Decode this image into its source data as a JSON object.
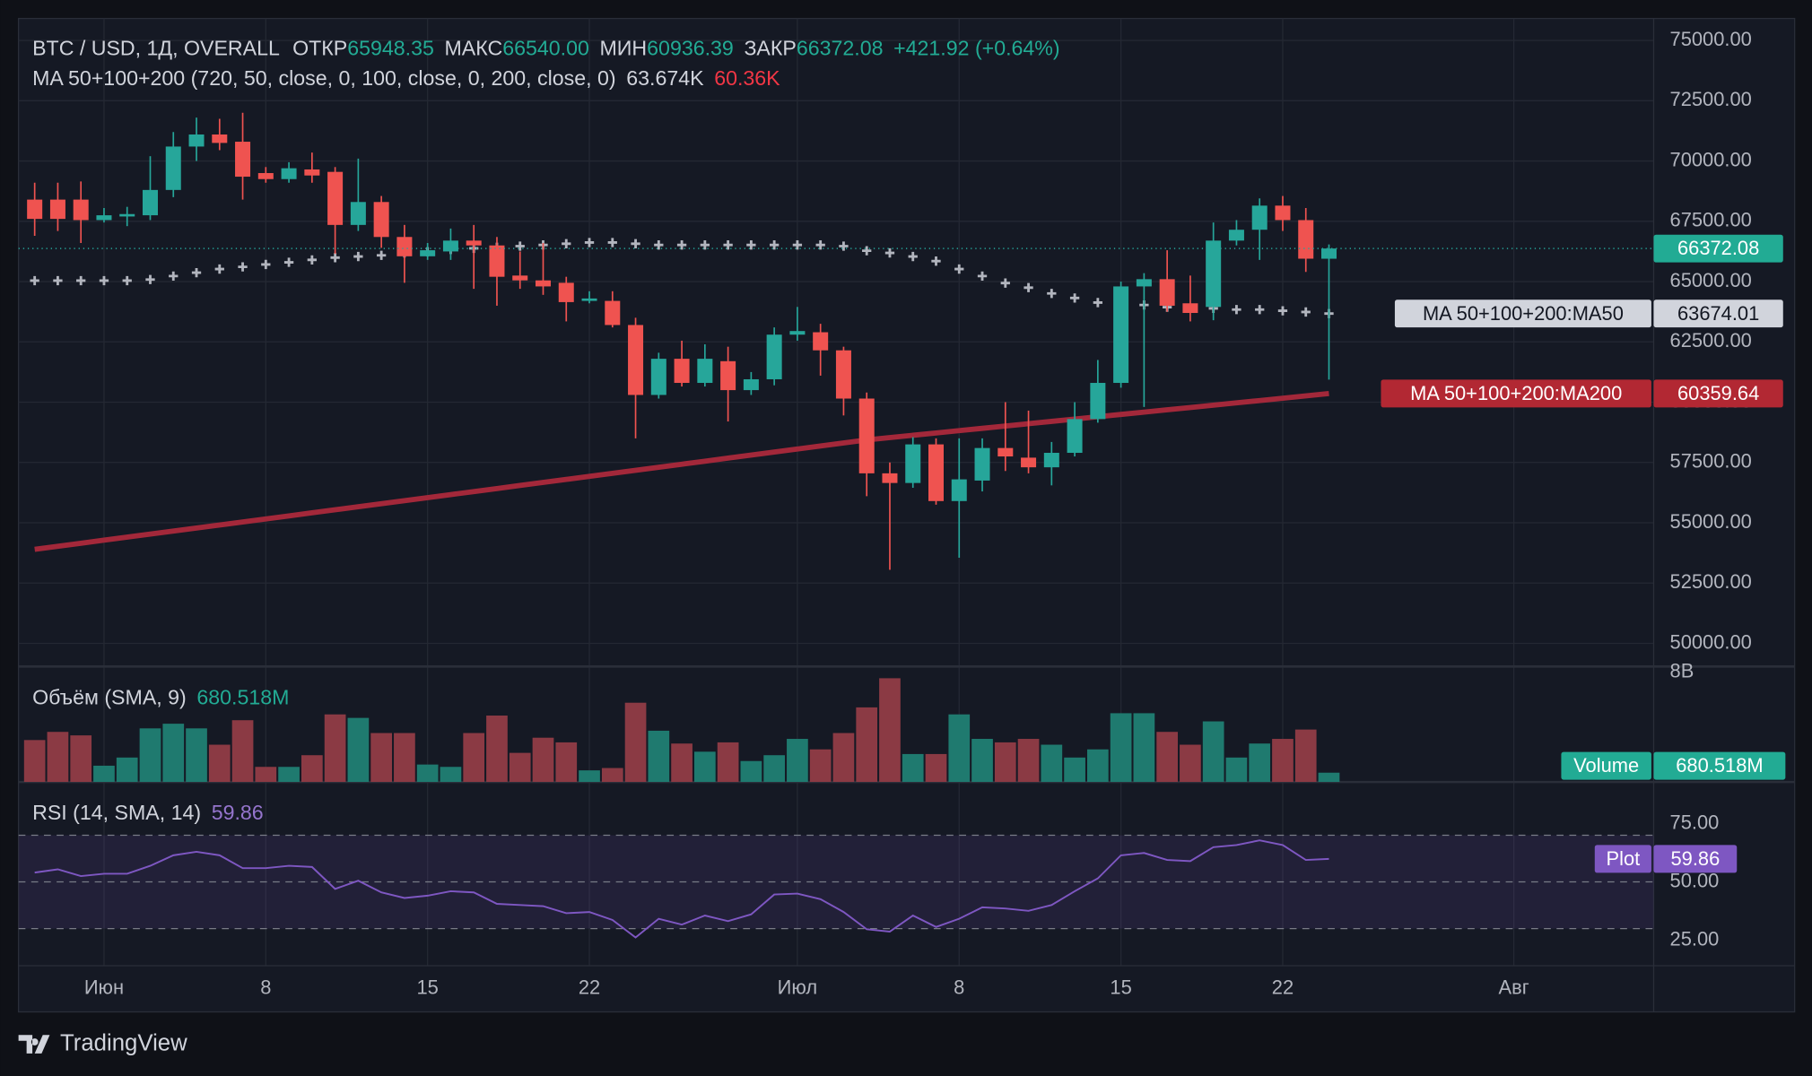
{
  "branding": "TradingView",
  "chart_data": [
    {
      "type": "candlestick",
      "title": "BTC / USD, 1Д, OVERALL",
      "ohlc_legend": [
        {
          "label": "ОТКР",
          "value": "65948.35"
        },
        {
          "label": "МАКС",
          "value": "66540.00"
        },
        {
          "label": "МИН",
          "value": "60936.39"
        },
        {
          "label": "ЗАКР",
          "value": "66372.08"
        }
      ],
      "change": "+421.92 (+0.64%)",
      "indicator": "MA 50+100+200 (720, 50, close, 0, 100, close, 0, 200, close, 0)",
      "indicator_values": [
        "63.674K",
        "60.36K"
      ],
      "x": [
        "05-29",
        "05-30",
        "05-31",
        "06-01",
        "06-02",
        "06-03",
        "06-04",
        "06-05",
        "06-06",
        "06-07",
        "06-08",
        "06-09",
        "06-10",
        "06-11",
        "06-12",
        "06-13",
        "06-14",
        "06-15",
        "06-16",
        "06-17",
        "06-18",
        "06-19",
        "06-20",
        "06-21",
        "06-22",
        "06-23",
        "06-24",
        "06-25",
        "06-26",
        "06-27",
        "06-28",
        "06-29",
        "06-30",
        "07-01",
        "07-02",
        "07-03",
        "07-04",
        "07-05",
        "07-06",
        "07-07",
        "07-08",
        "07-09",
        "07-10",
        "07-11",
        "07-12",
        "07-13",
        "07-14",
        "07-15",
        "07-16",
        "07-17",
        "07-18",
        "07-19",
        "07-20",
        "07-21",
        "07-22",
        "07-23",
        "07-24"
      ],
      "open": [
        68400,
        68400,
        68400,
        67550,
        67700,
        67750,
        68800,
        70600,
        71100,
        70800,
        69500,
        69250,
        69650,
        69550,
        67350,
        68300,
        66850,
        66050,
        66250,
        66700,
        66500,
        65250,
        65050,
        64950,
        64200,
        64200,
        63200,
        60300,
        61800,
        60800,
        61700,
        60500,
        60950,
        62800,
        62900,
        62150,
        60150,
        57050,
        56650,
        58250,
        55900,
        56750,
        58100,
        57700,
        57300,
        57900,
        59300,
        60800,
        64800,
        65100,
        64100,
        63950,
        66700,
        67150,
        68150,
        67550,
        65948.35
      ],
      "high": [
        69100,
        69100,
        69150,
        68050,
        68100,
        70200,
        71200,
        71800,
        71750,
        72000,
        69750,
        69950,
        70350,
        69750,
        70100,
        68550,
        67350,
        66600,
        67200,
        67350,
        66850,
        66250,
        66600,
        65200,
        64600,
        64600,
        63500,
        62050,
        62550,
        62400,
        62300,
        61250,
        63100,
        63950,
        63250,
        62300,
        60400,
        57500,
        58550,
        58500,
        58500,
        58500,
        60000,
        59650,
        58350,
        60000,
        61750,
        65000,
        65350,
        66300,
        65250,
        67450,
        67550,
        68450,
        68550,
        68050,
        66540
      ],
      "low": [
        66900,
        67100,
        66600,
        67450,
        67300,
        67550,
        68500,
        70000,
        70450,
        68400,
        69100,
        69100,
        69100,
        66150,
        67100,
        66400,
        64950,
        65900,
        65900,
        64700,
        64000,
        64700,
        64450,
        63350,
        64100,
        63100,
        58500,
        60150,
        60650,
        60650,
        59200,
        60300,
        60700,
        62550,
        61100,
        59450,
        56100,
        53050,
        56450,
        55750,
        53550,
        56300,
        57150,
        57050,
        56550,
        57750,
        59150,
        60600,
        59800,
        63750,
        63350,
        63400,
        66500,
        65900,
        67100,
        65400,
        60936.39
      ],
      "close": [
        67600,
        67600,
        67550,
        67750,
        67800,
        68800,
        70600,
        71100,
        70750,
        69350,
        69250,
        69700,
        69400,
        67350,
        68300,
        66850,
        66050,
        66300,
        66700,
        66500,
        65200,
        65050,
        64800,
        64150,
        64300,
        63200,
        60300,
        61800,
        60800,
        61800,
        60500,
        60950,
        62800,
        62950,
        62150,
        60150,
        57050,
        56650,
        58250,
        55900,
        56800,
        58100,
        57750,
        57300,
        57900,
        59300,
        60800,
        64800,
        65100,
        64000,
        63700,
        66700,
        67150,
        68150,
        67550,
        65950,
        66372.08
      ],
      "up_color": "#26a69a",
      "down_color": "#ef5350",
      "series": [
        {
          "name": "MA 50+100+200:MA50",
          "color": "#b2b5be",
          "marker": "cross",
          "values": [
            65040,
            65040,
            65040,
            65040,
            65040,
            65085,
            65230,
            65370,
            65520,
            65610,
            65710,
            65800,
            65900,
            65995,
            66040,
            66090,
            66190,
            66235,
            66330,
            66380,
            66425,
            66470,
            66520,
            66570,
            66620,
            66620,
            66570,
            66520,
            66520,
            66520,
            66520,
            66520,
            66520,
            66520,
            66520,
            66470,
            66280,
            66190,
            66040,
            65850,
            65520,
            65230,
            64940,
            64750,
            64510,
            64320,
            64130,
            64130,
            64030,
            63940,
            63890,
            63890,
            63840,
            63840,
            63790,
            63740,
            63674.01
          ]
        },
        {
          "name": "MA 50+100+200:MA200",
          "color": "#a3283a",
          "values": [
            53900,
            54026,
            54152,
            54278,
            54404,
            54530,
            54656,
            54782,
            54908,
            55034,
            55160,
            55286,
            55412,
            55538,
            55664,
            55790,
            55916,
            56042,
            56168,
            56294,
            56420,
            56546,
            56672,
            56798,
            56924,
            57050,
            57176,
            57302,
            57428,
            57554,
            57680,
            57806,
            57932,
            58058,
            58184,
            58310,
            58436,
            58532,
            58628,
            58724,
            58820,
            58916,
            59012,
            59108,
            59204,
            59300,
            59396,
            59492,
            59588,
            59684,
            59780,
            59876,
            59972,
            60068,
            60164,
            60260,
            60359.64
          ]
        }
      ],
      "xlim": [
        "05-28",
        "08-08"
      ],
      "xticks": [
        {
          "value": "06-01",
          "label": "Июн"
        },
        {
          "value": "06-08",
          "label": "8"
        },
        {
          "value": "06-15",
          "label": "15"
        },
        {
          "value": "06-22",
          "label": "22"
        },
        {
          "value": "07-01",
          "label": "Июл"
        },
        {
          "value": "07-08",
          "label": "8"
        },
        {
          "value": "07-15",
          "label": "15"
        },
        {
          "value": "07-22",
          "label": "22"
        },
        {
          "value": "08-01",
          "label": "Авг"
        }
      ],
      "ylim": [
        49040,
        75910
      ],
      "yticks": [
        {
          "value": 50000,
          "label": "50000.00"
        },
        {
          "value": 52500,
          "label": "52500.00"
        },
        {
          "value": 55000,
          "label": "55000.00"
        },
        {
          "value": 57500,
          "label": "57500.00"
        },
        {
          "value": 60000,
          "label": "60000.00"
        },
        {
          "value": 62500,
          "label": "62500.00"
        },
        {
          "value": 65000,
          "label": "65000.00"
        },
        {
          "value": 67500,
          "label": "67500.00"
        },
        {
          "value": 70000,
          "label": "70000.00"
        },
        {
          "value": 72500,
          "label": "72500.00"
        },
        {
          "value": 75000,
          "label": "75000.00"
        }
      ],
      "grid": true
    },
    {
      "type": "bar",
      "title": "Объём (SMA, 9)",
      "name": "Volume",
      "last_label": "680.518M",
      "values": [
        3060000000,
        3655000000,
        3400000000,
        1190000000,
        1785000000,
        3910000000,
        4250000000,
        3910000000,
        2720000000,
        4505000000,
        1105000000,
        1105000000,
        1955000000,
        4930000000,
        4675000000,
        3570000000,
        3570000000,
        1275000000,
        1105000000,
        3570000000,
        4845000000,
        2125000000,
        3230000000,
        2890000000,
        850000000,
        1020000000,
        5780000000,
        3740000000,
        2805000000,
        2210000000,
        2890000000,
        1530000000,
        1955000000,
        3145000000,
        2380000000,
        3570000000,
        5440000000,
        7565000000,
        2040000000,
        2040000000,
        4930000000,
        3145000000,
        2890000000,
        3145000000,
        2720000000,
        1785000000,
        2380000000,
        5015000000,
        5015000000,
        3655000000,
        2720000000,
        4420000000,
        1785000000,
        2805000000,
        3145000000,
        3825000000,
        680518000
      ],
      "up_color": "#1f7a6f",
      "down_color": "#8b3a44",
      "badge_color": "#22ab94",
      "ylim": [
        0,
        8420000000
      ],
      "yticks": [
        {
          "value": 8000000000,
          "label": "8B"
        }
      ]
    },
    {
      "type": "line",
      "title": "RSI (14, SMA, 14)",
      "name": "Plot",
      "color": "#7e57c2",
      "values": [
        54.0,
        55.4,
        52.5,
        53.5,
        53.5,
        56.9,
        61.4,
        62.9,
        61.4,
        55.9,
        55.9,
        56.9,
        56.4,
        47.0,
        50.5,
        45.5,
        43.1,
        44.1,
        46.0,
        45.5,
        40.6,
        40.1,
        39.6,
        36.6,
        37.1,
        33.7,
        26.2,
        34.2,
        31.7,
        35.6,
        33.2,
        36.1,
        44.6,
        45.0,
        42.6,
        37.1,
        29.7,
        28.7,
        35.6,
        30.7,
        34.2,
        39.1,
        38.6,
        37.6,
        40.1,
        46.0,
        51.5,
        61.4,
        62.4,
        59.4,
        58.9,
        64.9,
        65.8,
        67.8,
        65.8,
        59.4,
        59.86
      ],
      "ylim": [
        14.1,
        92.8
      ],
      "yticks": [
        {
          "value": 25,
          "label": "25.00"
        },
        {
          "value": 50,
          "label": "50.00"
        },
        {
          "value": 75,
          "label": "75.00"
        }
      ],
      "band": [
        30,
        70
      ],
      "midline": 50
    }
  ]
}
